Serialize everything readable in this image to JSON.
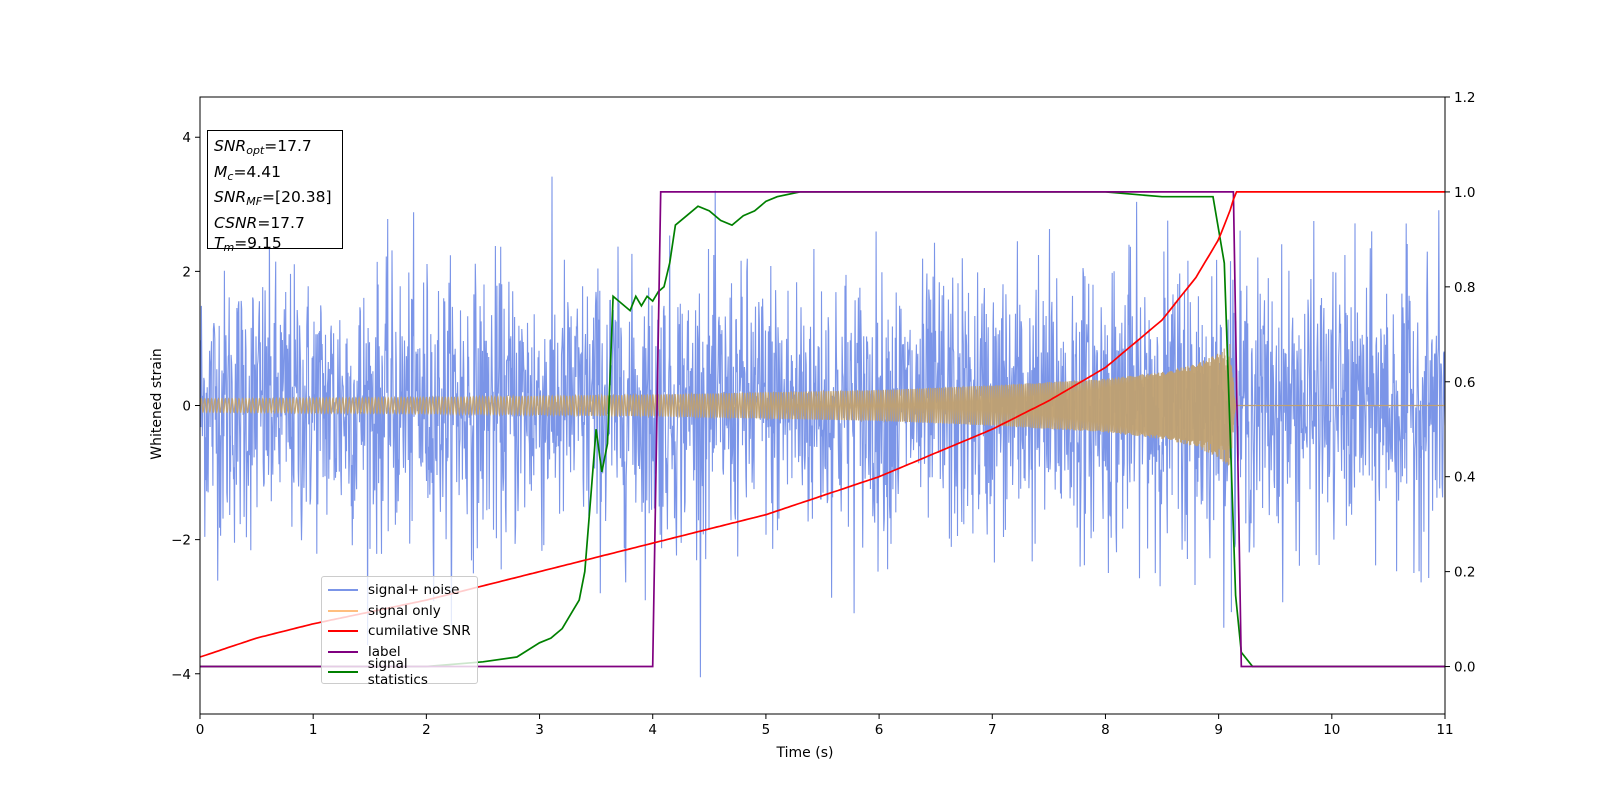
{
  "chart_data": {
    "type": "line",
    "xlabel": "Time (s)",
    "ylabel": "Whitened strain",
    "xlim": [
      0,
      11
    ],
    "ylim_left": [
      -4.6,
      4.6
    ],
    "ylim_right": [
      -0.1,
      1.2
    ],
    "x_ticks": [
      "0",
      "1",
      "2",
      "3",
      "4",
      "5",
      "6",
      "7",
      "8",
      "9",
      "10",
      "11"
    ],
    "y_ticks_left": [
      "−4",
      "−2",
      "0",
      "2",
      "4"
    ],
    "y_ticks_right": [
      "0.0",
      "0.2",
      "0.4",
      "0.6",
      "0.8",
      "1.0",
      "1.2"
    ],
    "grid": false,
    "legend_position": "lower-left",
    "annotation": {
      "snr_opt": {
        "label": "SNR",
        "sub": "opt",
        "value": "=17.7"
      },
      "mc": {
        "label": "M",
        "sub": "c",
        "value": "=4.41"
      },
      "snr_mf": {
        "label": "SNR",
        "sub": "MF",
        "value": "=[20.38]"
      },
      "csnr": {
        "label": "CSNR",
        "value": "=17.7"
      },
      "tm": {
        "label": "T",
        "sub": "m",
        "value": "=9.15"
      }
    },
    "series": [
      {
        "name": "signal+ noise",
        "axis": "left",
        "color": "#7b95e8",
        "description": "whitened noisy strain, std approx 1, peaks to about ±4 between t=0 and t=11",
        "noise_std": 1.0,
        "signal_included": true
      },
      {
        "name": "signal only",
        "axis": "left",
        "color": "#c0a070",
        "description": "chirp envelope growing until merger",
        "envelope": {
          "x": [
            0,
            2,
            4,
            6,
            7,
            8,
            8.5,
            8.8,
            9.0,
            9.1,
            9.15
          ],
          "y": [
            0.1,
            0.12,
            0.16,
            0.23,
            0.3,
            0.4,
            0.5,
            0.62,
            0.78,
            0.92,
            0.0
          ]
        },
        "after_merger_value": 0
      },
      {
        "name": "cumilative SNR",
        "axis": "right",
        "color": "#ff0000",
        "x": [
          0,
          0.5,
          1,
          2,
          3,
          4,
          5,
          6,
          7,
          7.5,
          8,
          8.5,
          8.8,
          9.0,
          9.1,
          9.15,
          11
        ],
        "y": [
          0.02,
          0.06,
          0.09,
          0.14,
          0.2,
          0.26,
          0.32,
          0.4,
          0.5,
          0.56,
          0.63,
          0.73,
          0.82,
          0.9,
          0.96,
          1.0,
          1.0
        ]
      },
      {
        "name": "label",
        "axis": "right",
        "color": "#800080",
        "x": [
          0,
          4.0,
          4.07,
          9.13,
          9.2,
          11
        ],
        "y": [
          0,
          0,
          1,
          1,
          0,
          0
        ]
      },
      {
        "name": "signal statistics",
        "axis": "right",
        "color": "#008000",
        "x": [
          0,
          1,
          2,
          2.5,
          2.8,
          3.0,
          3.1,
          3.2,
          3.3,
          3.35,
          3.4,
          3.45,
          3.5,
          3.55,
          3.6,
          3.65,
          3.7,
          3.8,
          3.85,
          3.9,
          3.95,
          4.0,
          4.05,
          4.1,
          4.15,
          4.2,
          4.3,
          4.4,
          4.5,
          4.6,
          4.7,
          4.8,
          4.9,
          5.0,
          5.1,
          5.3,
          5.6,
          6.0,
          7,
          8,
          8.5,
          8.8,
          8.95,
          9.05,
          9.1,
          9.15,
          9.2,
          9.3,
          11
        ],
        "y": [
          0,
          0,
          0,
          0.01,
          0.02,
          0.05,
          0.06,
          0.08,
          0.12,
          0.14,
          0.2,
          0.35,
          0.5,
          0.41,
          0.47,
          0.78,
          0.77,
          0.75,
          0.78,
          0.76,
          0.78,
          0.77,
          0.79,
          0.8,
          0.85,
          0.93,
          0.95,
          0.97,
          0.96,
          0.94,
          0.93,
          0.95,
          0.96,
          0.98,
          0.99,
          1.0,
          1.0,
          1.0,
          1.0,
          1.0,
          0.99,
          0.99,
          0.99,
          0.85,
          0.5,
          0.15,
          0.03,
          0.0,
          0.0
        ]
      }
    ]
  }
}
